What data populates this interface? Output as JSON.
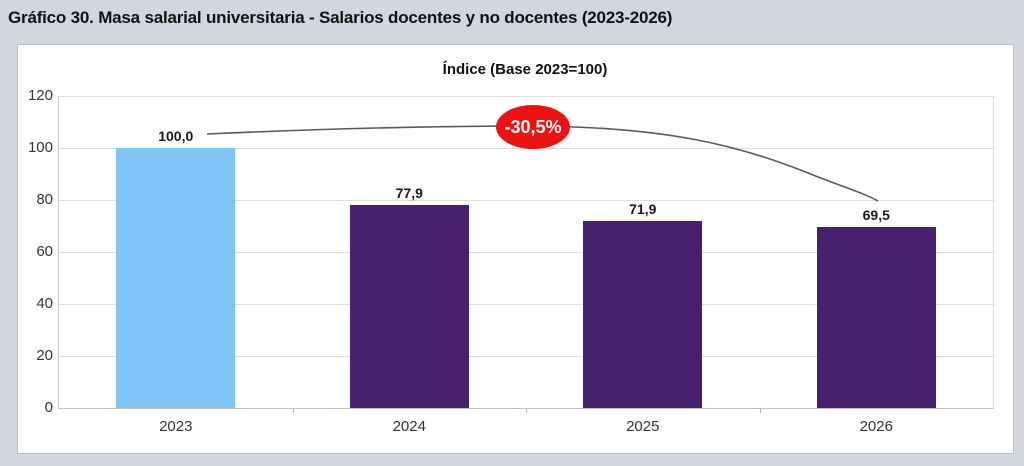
{
  "page": {
    "title": "Gráfico 30. Masa salarial universitaria - Salarios docentes y no docentes (2023-2026)",
    "background_color": "#d3d6de"
  },
  "chart_data": {
    "type": "bar",
    "title": "Índice (Base 2023=100)",
    "categories": [
      "2023",
      "2024",
      "2025",
      "2026"
    ],
    "values": [
      100.0,
      77.9,
      71.9,
      69.5
    ],
    "value_labels": [
      "100,0",
      "77,9",
      "71,9",
      "69,5"
    ],
    "bar_colors": [
      "#7fc6f7",
      "#47216e",
      "#47216e",
      "#47216e"
    ],
    "xlabel": "",
    "ylabel": "",
    "ylim": [
      0,
      120
    ],
    "ytick_labels": [
      "0",
      "20",
      "40",
      "60",
      "80",
      "100",
      "120"
    ],
    "grid": true,
    "legend_position": "none",
    "annotation": {
      "label": "-30,5%",
      "fill_color": "#ee1111",
      "text_color": "#ffffff",
      "line_color": "#595959"
    }
  }
}
